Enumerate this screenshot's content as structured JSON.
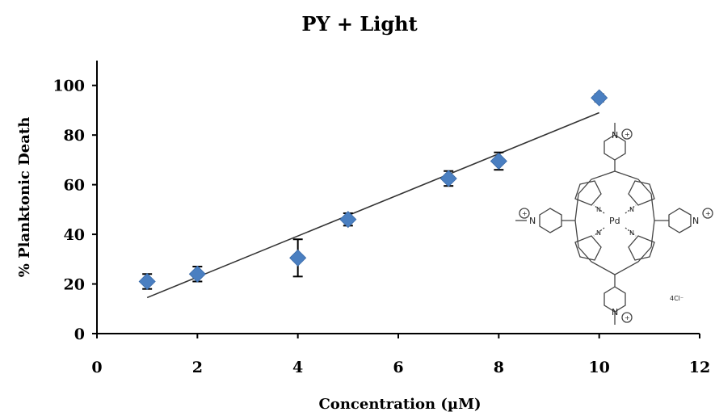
{
  "chart_data": {
    "type": "scatter",
    "title": "PY + Light",
    "xlabel": "Concentration (µM)",
    "ylabel": "% Planktonic Death",
    "xlim": [
      0,
      12
    ],
    "ylim": [
      0,
      110
    ],
    "x_ticks": [
      0,
      2,
      4,
      6,
      8,
      10,
      12
    ],
    "y_ticks": [
      0,
      20,
      40,
      60,
      80,
      100
    ],
    "grid": false,
    "legend": "none",
    "marker_color": "#4a7fc1",
    "series": [
      {
        "x": [
          1,
          2,
          4,
          5,
          7,
          8,
          10
        ],
        "y": [
          21,
          24,
          30.5,
          46,
          62.5,
          69.5,
          95
        ],
        "error": [
          3,
          3,
          7.5,
          2.5,
          3,
          3.5,
          1.5
        ]
      }
    ],
    "trendline": {
      "x": [
        1,
        10
      ],
      "y": [
        14.5,
        89
      ]
    },
    "inset": {
      "atoms": {
        "n": "N",
        "pd": "Pd",
        "plus": "+",
        "counterion": "4Cl⁻"
      }
    }
  }
}
